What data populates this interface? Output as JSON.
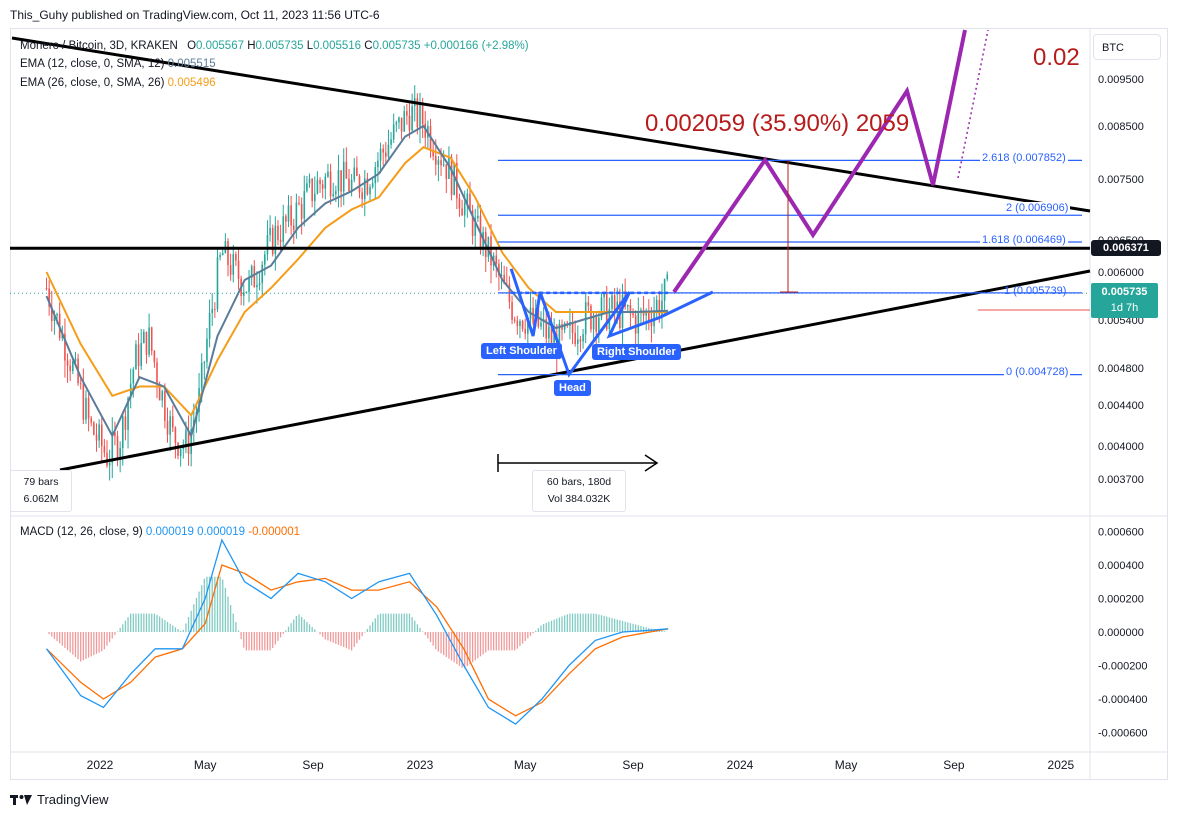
{
  "header": {
    "publish_line": "This_Guhy published on TradingView.com, Oct 11, 2023 11:56 UTC-6"
  },
  "footer": {
    "brand": "TradingView"
  },
  "symbol_button": "BTC",
  "legend": {
    "title": "Monero / Bitcoin, 3D, KRAKEN",
    "o_label": "O",
    "o_value": "0.005567",
    "h_label": "H",
    "h_value": "0.005735",
    "l_label": "L",
    "l_value": "0.005516",
    "c_label": "C",
    "c_value": "0.005735",
    "change": "+0.000166 (+2.98%)",
    "ema12_label": "EMA (12, close, 0, SMA, 12)",
    "ema12_value": "0.005515",
    "ema26_label": "EMA (26, close, 0, SMA, 26)",
    "ema26_value": "0.005496",
    "macd_label": "MACD (12, 26, close, 9)",
    "macd_v1": "0.000019",
    "macd_v2": "0.000019",
    "macd_v3": "-0.000001"
  },
  "annotations": {
    "target": "0.002059 (35.90%) 2059",
    "target_cut": "0.02",
    "left_shoulder": "Left Shoulder",
    "head": "Head",
    "right_shoulder": "Right Shoulder",
    "fib_2618": "2.618 (0.007852)",
    "fib_2": "2 (0.006906)",
    "fib_1618": "1.618 (0.006469)",
    "fib_1": "1 (0.005739)",
    "fib_0": "0 (0.004728)",
    "range_bars": "60 bars, 180d",
    "range_vol": "Vol 384.032K",
    "left_box_1": "79 bars",
    "left_box_2": "6.062M"
  },
  "price_labels": {
    "horizontal_line": "0.006371",
    "last_price": "0.005735",
    "countdown": "1d 7h"
  },
  "colors": {
    "up": "#26a69a",
    "down": "#ef5350",
    "ema12": "#5b7c99",
    "ema26": "#f59d19",
    "pattern": "#2962ff",
    "projection": "#9c27b0",
    "target": "#b71c1c",
    "fib": "#2962ff",
    "macd": "#2196f3",
    "signal": "#ff6d00",
    "last_price_bg": "#26a69a"
  },
  "chart_data": {
    "type": "candlestick",
    "title": "Monero / Bitcoin, 3D, KRAKEN",
    "price_axis_ticks": [
      0.0095,
      0.0085,
      0.0075,
      0.0065,
      0.006,
      0.0054,
      0.0048,
      0.0044,
      0.004,
      0.0037
    ],
    "price_axis_tick_labels": [
      "0.009500",
      "0.008500",
      "0.007500",
      "0.006500",
      "0.006000",
      "0.005400",
      "0.004800",
      "0.004400",
      "0.004000",
      "0.003700"
    ],
    "macd_axis_ticks": [
      0.0006,
      0.0004,
      0.0002,
      0,
      -0.0002,
      -0.0004,
      -0.0006
    ],
    "macd_axis_tick_labels": [
      "0.000600",
      "0.000400",
      "0.000200",
      "0.000000",
      "-0.000200",
      "-0.000400",
      "-0.000600"
    ],
    "time_labels": [
      "2022",
      "May",
      "Sep",
      "2023",
      "May",
      "Sep",
      "2024",
      "May",
      "Sep",
      "2025"
    ],
    "price_path": [
      [
        "2021-11-01",
        0.0058
      ],
      [
        "2021-11-25",
        0.005
      ],
      [
        "2021-12-20",
        0.0042
      ],
      [
        "2022-01-10",
        0.0039
      ],
      [
        "2022-01-25",
        0.0041
      ],
      [
        "2022-02-10",
        0.0049
      ],
      [
        "2022-02-25",
        0.0052
      ],
      [
        "2022-03-10",
        0.0046
      ],
      [
        "2022-03-25",
        0.0041
      ],
      [
        "2022-04-10",
        0.004
      ],
      [
        "2022-04-25",
        0.0045
      ],
      [
        "2022-05-05",
        0.0053
      ],
      [
        "2022-05-20",
        0.0063
      ],
      [
        "2022-06-05",
        0.006
      ],
      [
        "2022-06-20",
        0.0058
      ],
      [
        "2022-07-05",
        0.0062
      ],
      [
        "2022-07-20",
        0.0066
      ],
      [
        "2022-08-05",
        0.0068
      ],
      [
        "2022-08-20",
        0.0071
      ],
      [
        "2022-09-05",
        0.0074
      ],
      [
        "2022-09-25",
        0.0076
      ],
      [
        "2022-10-15",
        0.0074
      ],
      [
        "2022-11-01",
        0.0075
      ],
      [
        "2022-11-15",
        0.0079
      ],
      [
        "2022-12-01",
        0.0083
      ],
      [
        "2022-12-20",
        0.0088
      ],
      [
        "2023-01-05",
        0.0086
      ],
      [
        "2023-01-20",
        0.0081
      ],
      [
        "2023-02-05",
        0.0076
      ],
      [
        "2023-02-20",
        0.0071
      ],
      [
        "2023-03-05",
        0.0067
      ],
      [
        "2023-03-20",
        0.0063
      ],
      [
        "2023-04-05",
        0.0058
      ],
      [
        "2023-04-20",
        0.0055
      ],
      [
        "2023-05-05",
        0.0054
      ],
      [
        "2023-05-20",
        0.0053
      ],
      [
        "2023-06-05",
        0.0051
      ],
      [
        "2023-06-20",
        0.0052
      ],
      [
        "2023-07-05",
        0.0054
      ],
      [
        "2023-07-20",
        0.0055
      ],
      [
        "2023-08-05",
        0.0055
      ],
      [
        "2023-08-20",
        0.0055
      ],
      [
        "2023-09-05",
        0.0054
      ],
      [
        "2023-09-20",
        0.0055
      ],
      [
        "2023-10-11",
        0.005735
      ]
    ],
    "ema12": [
      [
        "2021-11-01",
        0.0057
      ],
      [
        "2021-12-10",
        0.0047
      ],
      [
        "2022-01-15",
        0.0041
      ],
      [
        "2022-02-15",
        0.0047
      ],
      [
        "2022-03-15",
        0.0046
      ],
      [
        "2022-04-15",
        0.0041
      ],
      [
        "2022-05-15",
        0.0052
      ],
      [
        "2022-06-15",
        0.0059
      ],
      [
        "2022-07-15",
        0.0061
      ],
      [
        "2022-08-15",
        0.0067
      ],
      [
        "2022-09-15",
        0.0071
      ],
      [
        "2022-10-15",
        0.0073
      ],
      [
        "2022-11-15",
        0.0076
      ],
      [
        "2022-12-15",
        0.0083
      ],
      [
        "2023-01-05",
        0.0085
      ],
      [
        "2023-02-05",
        0.0077
      ],
      [
        "2023-03-05",
        0.0068
      ],
      [
        "2023-04-05",
        0.0059
      ],
      [
        "2023-05-05",
        0.0055
      ],
      [
        "2023-06-05",
        0.0053
      ],
      [
        "2023-07-05",
        0.0054
      ],
      [
        "2023-08-05",
        0.0055
      ],
      [
        "2023-09-05",
        0.0055
      ],
      [
        "2023-10-11",
        0.005515
      ]
    ],
    "ema26": [
      [
        "2021-11-01",
        0.006
      ],
      [
        "2021-12-10",
        0.0051
      ],
      [
        "2022-01-15",
        0.0045
      ],
      [
        "2022-02-15",
        0.0046
      ],
      [
        "2022-03-15",
        0.0046
      ],
      [
        "2022-04-15",
        0.0043
      ],
      [
        "2022-05-15",
        0.0049
      ],
      [
        "2022-06-15",
        0.0055
      ],
      [
        "2022-07-15",
        0.0058
      ],
      [
        "2022-08-15",
        0.0062
      ],
      [
        "2022-09-15",
        0.0067
      ],
      [
        "2022-10-15",
        0.007
      ],
      [
        "2022-11-15",
        0.0072
      ],
      [
        "2022-12-15",
        0.0078
      ],
      [
        "2023-01-05",
        0.0081
      ],
      [
        "2023-02-05",
        0.0079
      ],
      [
        "2023-03-05",
        0.0072
      ],
      [
        "2023-04-05",
        0.0063
      ],
      [
        "2023-05-05",
        0.0058
      ],
      [
        "2023-06-05",
        0.0055
      ],
      [
        "2023-07-05",
        0.0055
      ],
      [
        "2023-08-05",
        0.0055
      ],
      [
        "2023-09-05",
        0.0055
      ],
      [
        "2023-10-11",
        0.005496
      ]
    ],
    "macd_line": [
      [
        "2021-11-01",
        -0.0001
      ],
      [
        "2021-12-10",
        -0.00038
      ],
      [
        "2022-01-05",
        -0.00045
      ],
      [
        "2022-02-05",
        -0.00025
      ],
      [
        "2022-03-05",
        -0.0001
      ],
      [
        "2022-04-05",
        -0.0001
      ],
      [
        "2022-05-01",
        0.0002
      ],
      [
        "2022-05-20",
        0.00055
      ],
      [
        "2022-06-15",
        0.0003
      ],
      [
        "2022-07-15",
        0.0002
      ],
      [
        "2022-08-15",
        0.00035
      ],
      [
        "2022-09-15",
        0.0003
      ],
      [
        "2022-10-15",
        0.0002
      ],
      [
        "2022-11-15",
        0.0003
      ],
      [
        "2022-12-20",
        0.00035
      ],
      [
        "2023-01-20",
        0.0001
      ],
      [
        "2023-02-20",
        -0.0002
      ],
      [
        "2023-03-20",
        -0.00045
      ],
      [
        "2023-04-20",
        -0.00055
      ],
      [
        "2023-05-20",
        -0.0004
      ],
      [
        "2023-06-20",
        -0.0002
      ],
      [
        "2023-07-20",
        -5e-05
      ],
      [
        "2023-08-20",
        0.0
      ],
      [
        "2023-09-20",
        1e-05
      ],
      [
        "2023-10-11",
        1.9e-05
      ]
    ],
    "signal_line": [
      [
        "2021-11-01",
        -0.0001
      ],
      [
        "2021-12-10",
        -0.0003
      ],
      [
        "2022-01-05",
        -0.0004
      ],
      [
        "2022-02-05",
        -0.0003
      ],
      [
        "2022-03-05",
        -0.00015
      ],
      [
        "2022-04-05",
        -0.0001
      ],
      [
        "2022-05-01",
        5e-05
      ],
      [
        "2022-05-20",
        0.0004
      ],
      [
        "2022-06-15",
        0.00035
      ],
      [
        "2022-07-15",
        0.00025
      ],
      [
        "2022-08-15",
        0.0003
      ],
      [
        "2022-09-15",
        0.00032
      ],
      [
        "2022-10-15",
        0.00025
      ],
      [
        "2022-11-15",
        0.00025
      ],
      [
        "2022-12-20",
        0.0003
      ],
      [
        "2023-01-20",
        0.00015
      ],
      [
        "2023-02-20",
        -0.0001
      ],
      [
        "2023-03-20",
        -0.0004
      ],
      [
        "2023-04-20",
        -0.0005
      ],
      [
        "2023-05-20",
        -0.00042
      ],
      [
        "2023-06-20",
        -0.00025
      ],
      [
        "2023-07-20",
        -0.0001
      ],
      [
        "2023-08-20",
        -3e-05
      ],
      [
        "2023-09-20",
        0.0
      ],
      [
        "2023-10-11",
        1.9e-05
      ]
    ],
    "horizontal_level": 0.006371,
    "fib_levels": [
      {
        "ratio": "2.618",
        "value": 0.007852
      },
      {
        "ratio": "2",
        "value": 0.006906
      },
      {
        "ratio": "1.618",
        "value": 0.006469
      },
      {
        "ratio": "1",
        "value": 0.005739
      },
      {
        "ratio": "0",
        "value": 0.004728
      }
    ],
    "grid": false
  }
}
